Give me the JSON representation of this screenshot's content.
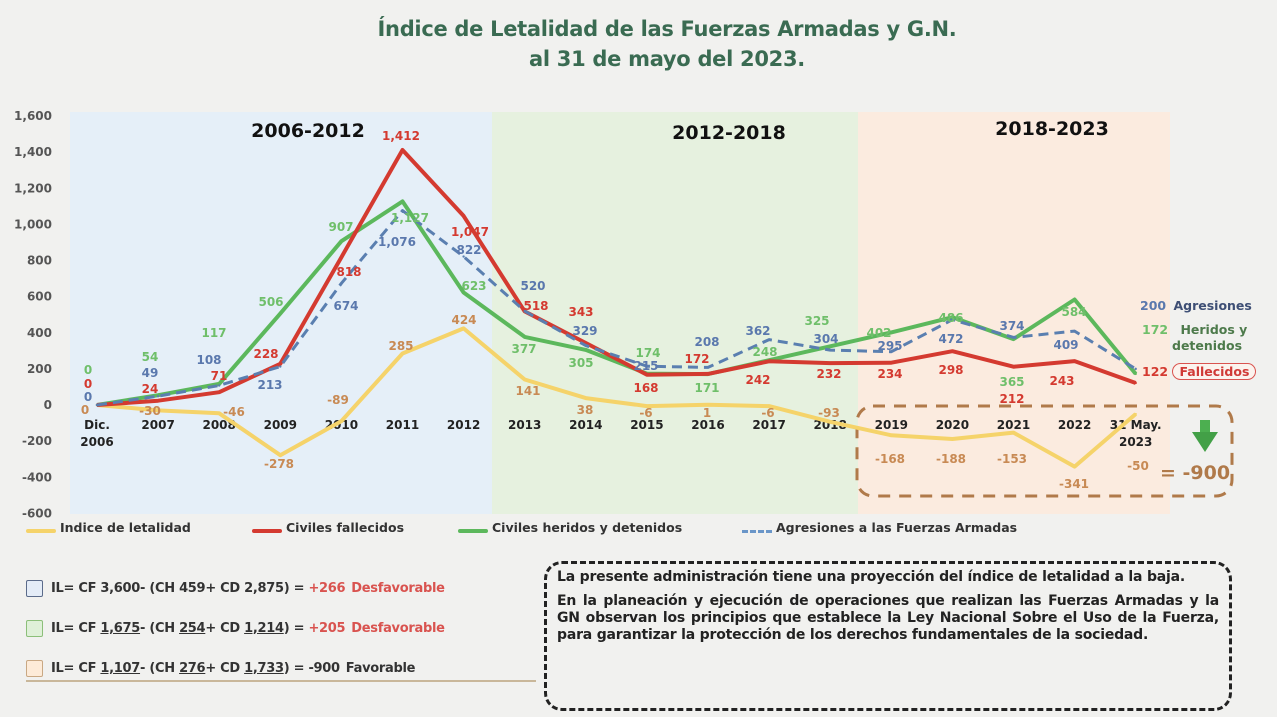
{
  "title": {
    "line1": "Índice de Letalidad de las Fuerzas Armadas y G.N.",
    "line2": "al 31 de mayo del 2023."
  },
  "chart_data": {
    "type": "line",
    "title": "Índice de Letalidad de las Fuerzas Armadas y G.N. al 31 de mayo del 2023.",
    "xlabel": "",
    "ylabel": "",
    "ylim": [
      -600,
      1600
    ],
    "yticks": [
      1600,
      1400,
      1200,
      1000,
      800,
      600,
      400,
      200,
      0,
      -200,
      -400,
      -600
    ],
    "ytick_labels": [
      "1,600",
      "1,400",
      "1,200",
      "1,000",
      "800",
      "600",
      "400",
      "200",
      "0",
      "-200",
      "-400",
      "-600"
    ],
    "categories": [
      "Dic. 2006",
      "2007",
      "2008",
      "2009",
      "2010",
      "2011",
      "2012",
      "2013",
      "2014",
      "2015",
      "2016",
      "2017",
      "2018",
      "2019",
      "2020",
      "2021",
      "2022",
      "31 May. 2023"
    ],
    "category_lines": [
      [
        "Dic.",
        "2006"
      ],
      [
        "2007"
      ],
      [
        "2008"
      ],
      [
        "2009"
      ],
      [
        "2010"
      ],
      [
        "2011"
      ],
      [
        "2012"
      ],
      [
        "2013"
      ],
      [
        "2014"
      ],
      [
        "2015"
      ],
      [
        "2016"
      ],
      [
        "2017"
      ],
      [
        "2018"
      ],
      [
        "2019"
      ],
      [
        "2020"
      ],
      [
        "2021"
      ],
      [
        "2022"
      ],
      [
        "31 May.",
        "2023"
      ]
    ],
    "periods": [
      {
        "label": "2006-2012",
        "from": 0,
        "to": 6,
        "color": "#e5eff8"
      },
      {
        "label": "2012-2018",
        "from": 6,
        "to": 12,
        "color": "#e6f1df"
      },
      {
        "label": "2018-2023",
        "from": 12,
        "to": 17,
        "color": "#fbebdf"
      }
    ],
    "series": [
      {
        "name": "Indice de letalidad",
        "color": "#f5d36a",
        "label_color": "#c88a54",
        "dashed": false,
        "values": [
          0,
          -30,
          -46,
          -278,
          -89,
          285,
          424,
          141,
          38,
          -6,
          1,
          -6,
          -93,
          -168,
          -188,
          -153,
          -341,
          -50
        ]
      },
      {
        "name": "Civiles fallecidos",
        "color": "#d43a30",
        "label_color": "#d43a30",
        "dashed": false,
        "values": [
          0,
          24,
          71,
          228,
          818,
          1412,
          1047,
          518,
          343,
          168,
          172,
          242,
          232,
          234,
          298,
          212,
          243,
          122
        ]
      },
      {
        "name": "Civiles heridos y detenidos",
        "color": "#5cb85c",
        "label_color": "#6fbf6a",
        "dashed": false,
        "values": [
          0,
          54,
          117,
          506,
          907,
          1127,
          623,
          377,
          305,
          174,
          171,
          248,
          325,
          402,
          486,
          365,
          584,
          172
        ]
      },
      {
        "name": "Agresiones a las Fuerzas Armadas",
        "color": "#5a7fb0",
        "label_color": "#5a78ad",
        "dashed": true,
        "values": [
          0,
          49,
          108,
          213,
          674,
          1076,
          822,
          520,
          329,
          215,
          208,
          362,
          304,
          295,
          472,
          374,
          409,
          200
        ]
      }
    ],
    "legend_position": "bottom",
    "grid": false
  },
  "end_labels": {
    "agresiones": {
      "value": "200",
      "label": "Agresiones"
    },
    "heridos": {
      "value": "172",
      "label_line1": "Heridos y",
      "label_line2": "detenidos"
    },
    "fallecidos": {
      "value": "122",
      "label": "Fallecidos"
    }
  },
  "highlight": {
    "total": "= -900",
    "arrow_icon": "down-arrow-icon"
  },
  "legend": [
    {
      "label": "Indice de letalidad"
    },
    {
      "label": "Civiles fallecidos"
    },
    {
      "label": "Civiles heridos y detenidos"
    },
    {
      "label": "Agresiones a las Fuerzas Armadas"
    }
  ],
  "formulas": [
    {
      "box_color": "#e4ecf7",
      "box_border": "#5b6b8a",
      "prefix": "IL= CF ",
      "cf": "3,600",
      "mid1": " - (CH ",
      "ch": "459",
      "mid2": " + CD ",
      "cd": "2,875",
      "end": ") = ",
      "result": "+266",
      "verdict": "Desfavorable",
      "underlined": false,
      "unfavorable": true
    },
    {
      "box_color": "#dff0d8",
      "box_border": "#8cbf79",
      "prefix": "IL= CF ",
      "cf": "1,675",
      "mid1": " - (CH ",
      "ch": "254",
      "mid2": " + CD ",
      "cd": "1,214",
      "end": ") = ",
      "result": "+205",
      "verdict": "Desfavorable",
      "underlined": true,
      "unfavorable": true
    },
    {
      "box_color": "#fdebd8",
      "box_border": "#c9a883",
      "prefix": "IL= CF ",
      "cf": "1,107",
      "mid1": " - (CH ",
      "ch": "276",
      "mid2": " + CD ",
      "cd": "1,733",
      "end": ") = ",
      "result": "-900",
      "verdict": "Favorable",
      "underlined": true,
      "unfavorable": false
    }
  ],
  "note": {
    "paragraph1": "La presente administración tiene una proyección del índice de letalidad a la baja.",
    "paragraph2": "En la planeación y ejecución de operaciones que realizan las Fuerzas Armadas y la GN observan los principios que establece la Ley Nacional Sobre el Uso de la Fuerza, para garantizar la protección de los derechos fundamentales de la sociedad."
  }
}
